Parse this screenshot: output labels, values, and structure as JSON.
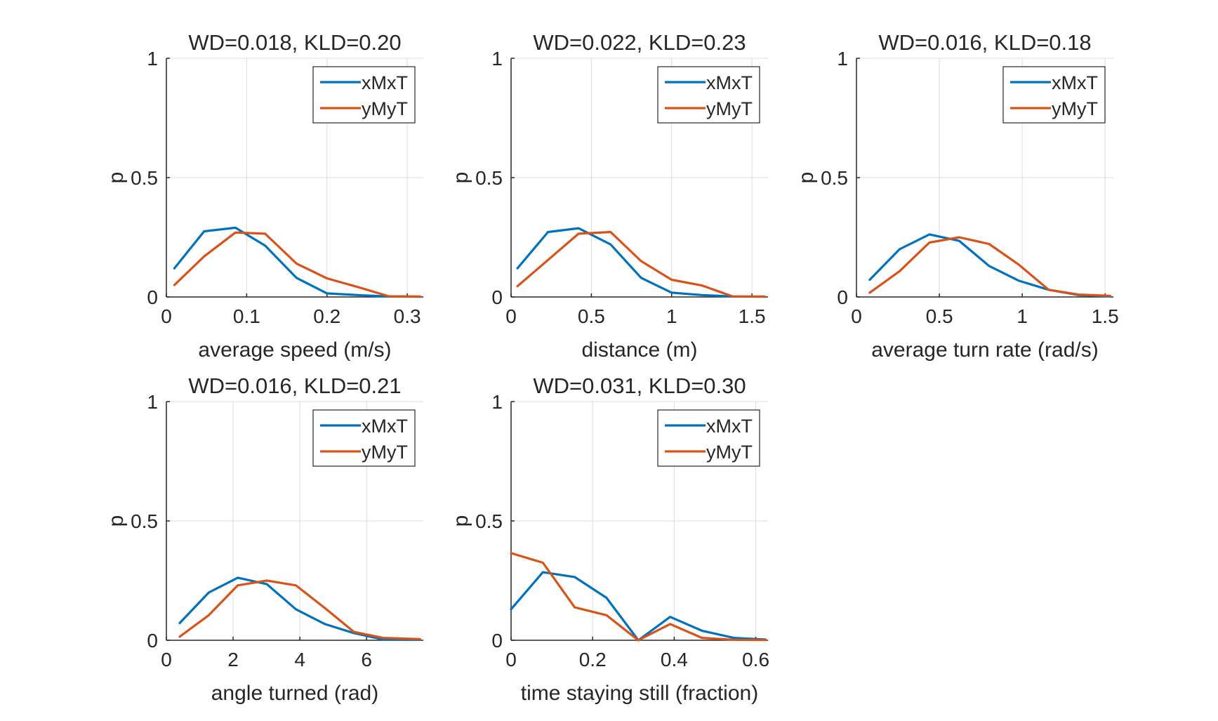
{
  "colors": {
    "xMxT": "#0072BD",
    "yMyT": "#D95319",
    "axis": "#262626",
    "grid": "#dcdcdc"
  },
  "chart_data": [
    {
      "type": "line",
      "title": "WD=0.018, KLD=0.20",
      "xlabel": "average speed (m/s)",
      "ylabel": "p",
      "xlim": [
        0,
        0.32
      ],
      "ylim": [
        0,
        1
      ],
      "xticks": [
        0,
        0.1,
        0.2,
        0.3
      ],
      "xtick_labels": [
        "0",
        "0.1",
        "0.2",
        "0.3"
      ],
      "yticks": [
        0,
        0.5,
        1
      ],
      "ytick_labels": [
        "0",
        "0.5",
        "1"
      ],
      "grid": true,
      "legend": "top-right",
      "series": [
        {
          "name": "xMxT",
          "x": [
            0.01,
            0.047,
            0.086,
            0.123,
            0.162,
            0.2,
            0.238,
            0.277,
            0.316
          ],
          "y": [
            0.12,
            0.275,
            0.29,
            0.215,
            0.08,
            0.015,
            0.008,
            0.002,
            0.001
          ]
        },
        {
          "name": "yMyT",
          "x": [
            0.01,
            0.047,
            0.086,
            0.123,
            0.162,
            0.2,
            0.238,
            0.277,
            0.316
          ],
          "y": [
            0.05,
            0.17,
            0.27,
            0.265,
            0.14,
            0.078,
            0.042,
            0.003,
            0.002
          ]
        }
      ]
    },
    {
      "type": "line",
      "title": "WD=0.022, KLD=0.23",
      "xlabel": "distance (m)",
      "ylabel": "p",
      "xlim": [
        0,
        1.6
      ],
      "ylim": [
        0,
        1
      ],
      "xticks": [
        0,
        0.5,
        1,
        1.5
      ],
      "xtick_labels": [
        "0",
        "0.5",
        "1",
        "1.5"
      ],
      "yticks": [
        0,
        0.5,
        1
      ],
      "ytick_labels": [
        "0",
        "0.5",
        "1"
      ],
      "grid": true,
      "legend": "top-right",
      "series": [
        {
          "name": "xMxT",
          "x": [
            0.04,
            0.23,
            0.42,
            0.62,
            0.81,
            1.0,
            1.19,
            1.38,
            1.58
          ],
          "y": [
            0.12,
            0.272,
            0.288,
            0.22,
            0.08,
            0.018,
            0.008,
            0.002,
            0.001
          ]
        },
        {
          "name": "yMyT",
          "x": [
            0.04,
            0.23,
            0.42,
            0.62,
            0.81,
            1.0,
            1.19,
            1.38,
            1.58
          ],
          "y": [
            0.045,
            0.155,
            0.265,
            0.272,
            0.15,
            0.072,
            0.048,
            0.002,
            0.002
          ]
        }
      ]
    },
    {
      "type": "line",
      "title": "WD=0.016, KLD=0.18",
      "xlabel": "average turn rate (rad/s)",
      "ylabel": "p",
      "xlim": [
        0,
        1.55
      ],
      "ylim": [
        0,
        1
      ],
      "xticks": [
        0,
        0.5,
        1,
        1.5
      ],
      "xtick_labels": [
        "0",
        "0.5",
        "1",
        "1.5"
      ],
      "yticks": [
        0,
        0.5,
        1
      ],
      "ytick_labels": [
        "0",
        "0.5",
        "1"
      ],
      "grid": true,
      "legend": "top-right",
      "series": [
        {
          "name": "xMxT",
          "x": [
            0.08,
            0.26,
            0.44,
            0.62,
            0.8,
            0.98,
            1.16,
            1.34,
            1.53
          ],
          "y": [
            0.072,
            0.2,
            0.262,
            0.235,
            0.13,
            0.068,
            0.03,
            0.008,
            0.003
          ]
        },
        {
          "name": "yMyT",
          "x": [
            0.08,
            0.26,
            0.44,
            0.62,
            0.8,
            0.98,
            1.16,
            1.34,
            1.53
          ],
          "y": [
            0.018,
            0.108,
            0.228,
            0.25,
            0.222,
            0.135,
            0.03,
            0.01,
            0.005
          ]
        }
      ]
    },
    {
      "type": "line",
      "title": "WD=0.016, KLD=0.21",
      "xlabel": "angle turned (rad)",
      "ylabel": "p",
      "xlim": [
        0,
        7.7
      ],
      "ylim": [
        0,
        1
      ],
      "xticks": [
        0,
        2,
        4,
        6
      ],
      "xtick_labels": [
        "0",
        "2",
        "4",
        "6"
      ],
      "yticks": [
        0,
        0.5,
        1
      ],
      "ytick_labels": [
        "0",
        "0.5",
        "1"
      ],
      "grid": true,
      "legend": "top-right",
      "series": [
        {
          "name": "xMxT",
          "x": [
            0.4,
            1.27,
            2.14,
            3.01,
            3.88,
            4.75,
            5.62,
            6.49,
            7.6
          ],
          "y": [
            0.072,
            0.2,
            0.262,
            0.235,
            0.13,
            0.068,
            0.03,
            0.003,
            0.002
          ]
        },
        {
          "name": "yMyT",
          "x": [
            0.4,
            1.27,
            2.14,
            3.01,
            3.88,
            4.75,
            5.62,
            6.49,
            7.6
          ],
          "y": [
            0.015,
            0.105,
            0.23,
            0.25,
            0.23,
            0.135,
            0.035,
            0.01,
            0.005
          ]
        }
      ]
    },
    {
      "type": "line",
      "title": "WD=0.031, KLD=0.30",
      "xlabel": "time staying still (fraction)",
      "ylabel": "p",
      "xlim": [
        0,
        0.63
      ],
      "ylim": [
        0,
        1
      ],
      "xticks": [
        0,
        0.2,
        0.4,
        0.6
      ],
      "xtick_labels": [
        "0",
        "0.2",
        "0.4",
        "0.6"
      ],
      "yticks": [
        0,
        0.5,
        1
      ],
      "ytick_labels": [
        "0",
        "0.5",
        "1"
      ],
      "grid": true,
      "legend": "top-right",
      "series": [
        {
          "name": "xMxT",
          "x": [
            0,
            0.078,
            0.156,
            0.234,
            0.312,
            0.39,
            0.468,
            0.546,
            0.624
          ],
          "y": [
            0.13,
            0.285,
            0.265,
            0.178,
            0.0,
            0.098,
            0.04,
            0.01,
            0.003
          ]
        },
        {
          "name": "yMyT",
          "x": [
            0,
            0.078,
            0.156,
            0.234,
            0.312,
            0.39,
            0.468,
            0.546,
            0.624
          ],
          "y": [
            0.365,
            0.325,
            0.138,
            0.105,
            0.0,
            0.068,
            0.01,
            0.002,
            0.001
          ]
        }
      ]
    }
  ]
}
